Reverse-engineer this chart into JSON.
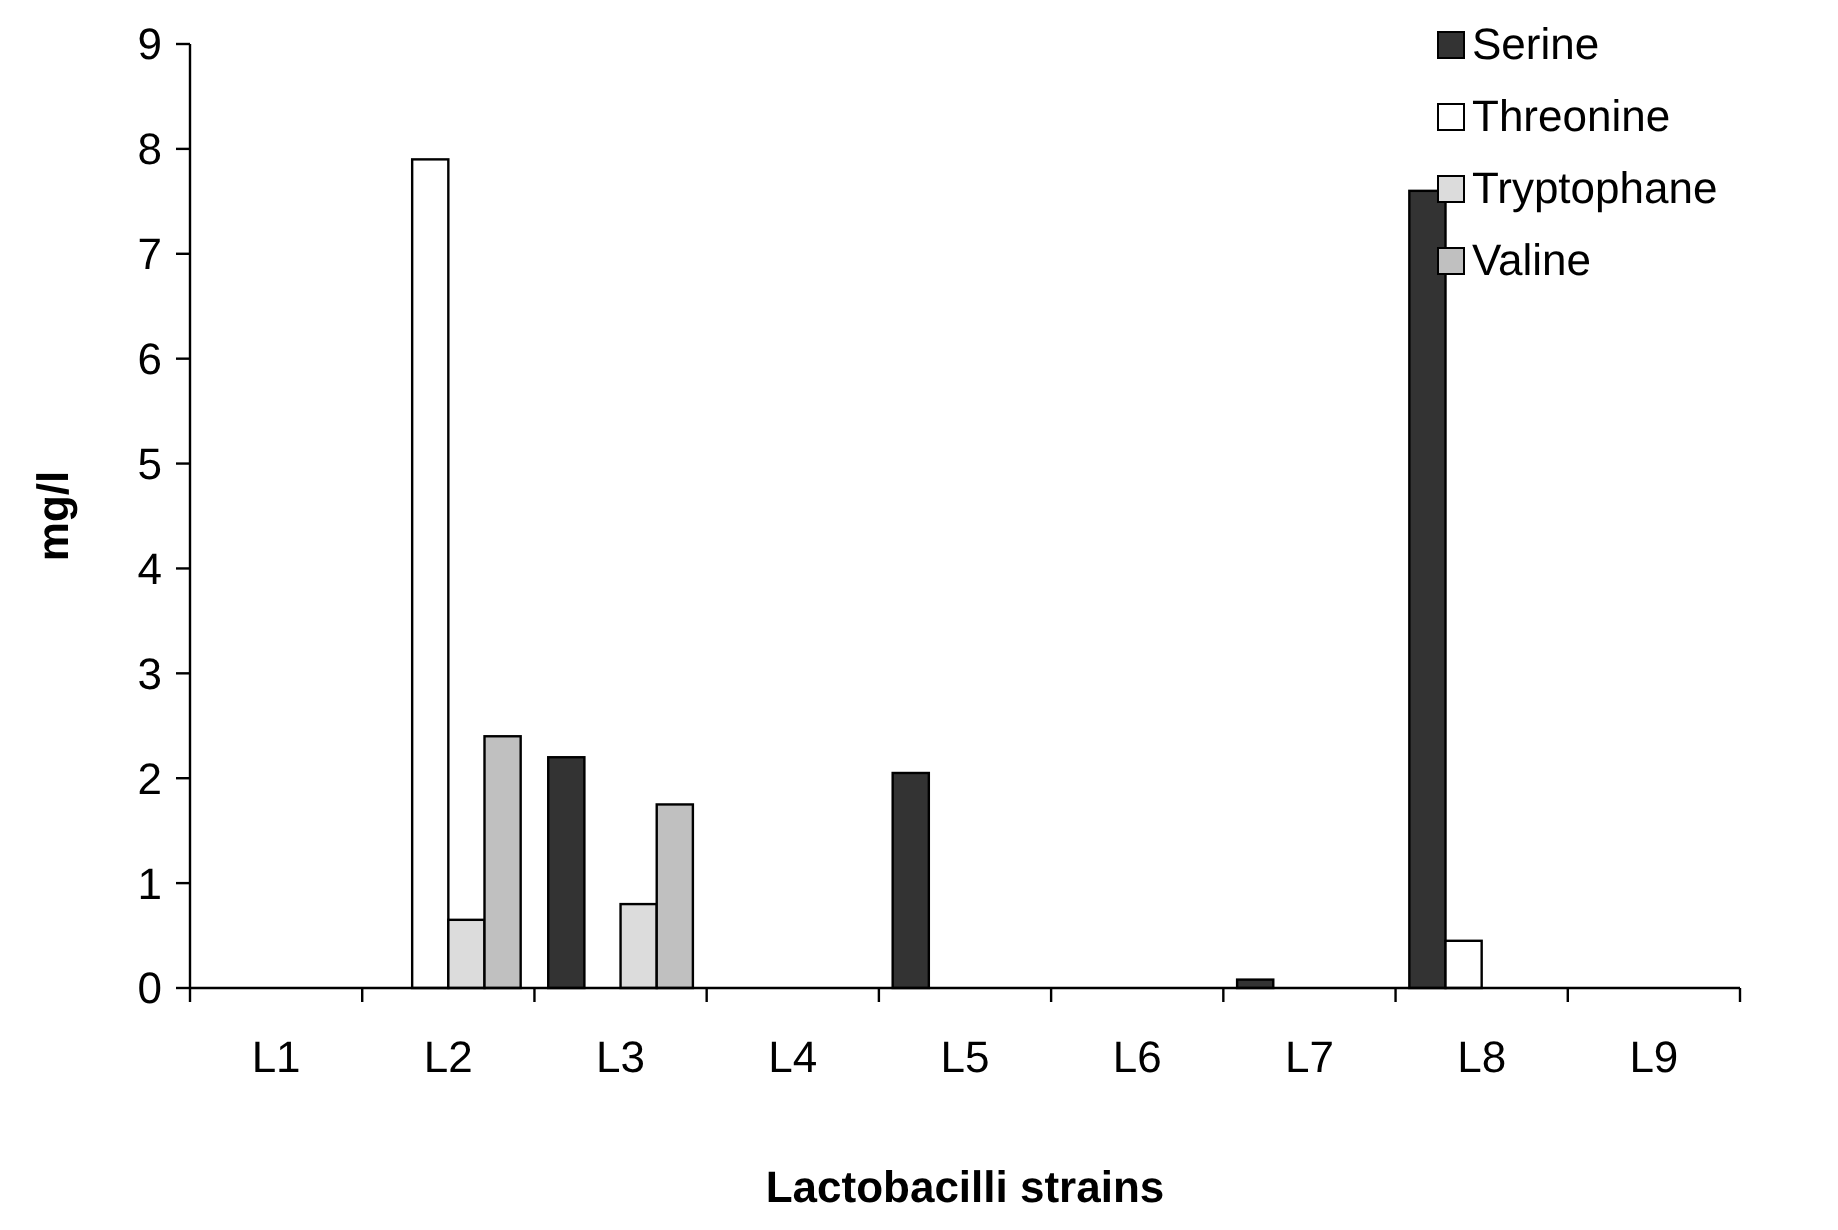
{
  "chart_data": {
    "type": "bar",
    "xlabel": "Lactobacilli strains",
    "ylabel": "mg/l",
    "categories": [
      "L1",
      "L2",
      "L3",
      "L4",
      "L5",
      "L6",
      "L7",
      "L8",
      "L9"
    ],
    "series": [
      {
        "name": "Serine",
        "color": "#333333",
        "values": [
          0,
          0,
          2.2,
          0,
          2.05,
          0,
          0.08,
          7.6,
          0
        ]
      },
      {
        "name": "Threonine",
        "color": "#ffffff",
        "values": [
          0,
          7.9,
          0,
          0,
          0,
          0,
          0,
          0.45,
          0
        ]
      },
      {
        "name": "Tryptophane",
        "color": "#dcdcdc",
        "values": [
          0,
          0.65,
          0.8,
          0,
          0,
          0,
          0,
          0,
          0
        ]
      },
      {
        "name": "Valine",
        "color": "#c0c0c0",
        "values": [
          0,
          2.4,
          1.75,
          0,
          0,
          0,
          0,
          0,
          0
        ]
      }
    ],
    "ylim": [
      0,
      9
    ],
    "yticks": [
      0,
      1,
      2,
      3,
      4,
      5,
      6,
      7,
      8,
      9
    ],
    "grid": false,
    "legend": "top right"
  }
}
